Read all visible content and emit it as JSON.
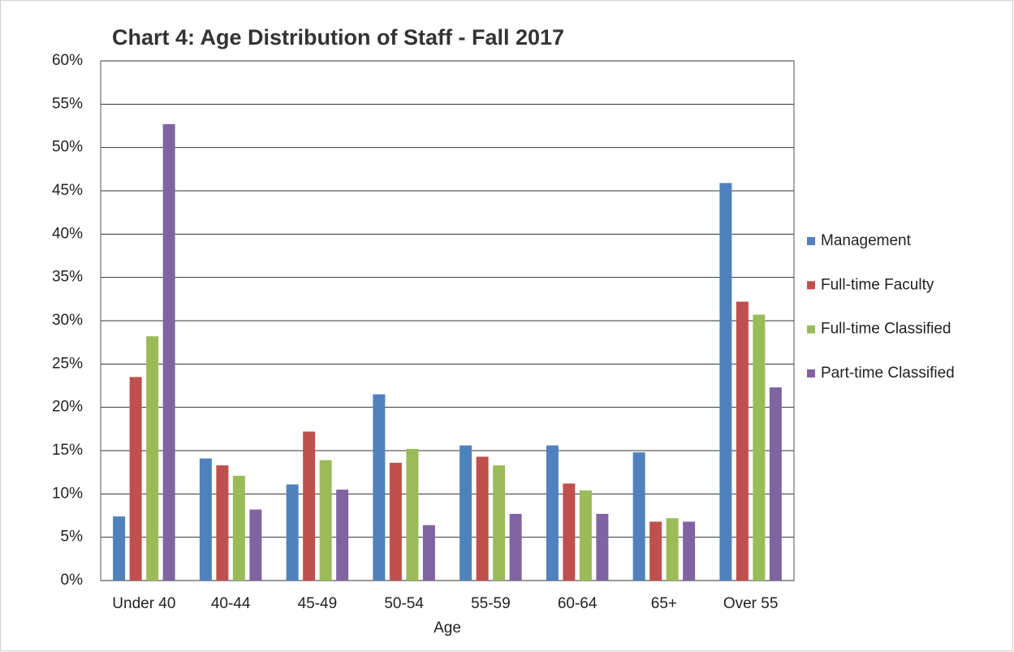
{
  "chart_data": {
    "type": "bar",
    "title": "Chart 4: Age Distribution of Staff - Fall 2017",
    "x_label": "Age",
    "categories": [
      "Under 40",
      "40-44",
      "45-49",
      "50-54",
      "55-59",
      "60-64",
      "65+",
      "Over 55"
    ],
    "series": [
      {
        "name": "Management",
        "color": "#4f81bd",
        "values": [
          7.4,
          14.1,
          11.1,
          21.5,
          15.6,
          15.6,
          14.8,
          45.9
        ]
      },
      {
        "name": "Full-time Faculty",
        "color": "#c0504d",
        "values": [
          23.5,
          13.3,
          17.2,
          13.6,
          14.3,
          11.2,
          6.8,
          32.2
        ]
      },
      {
        "name": "Full-time Classified",
        "color": "#9bbb59",
        "values": [
          28.2,
          12.1,
          13.9,
          15.2,
          13.3,
          10.4,
          7.2,
          30.7
        ]
      },
      {
        "name": "Part-time Classified",
        "color": "#8064a2",
        "values": [
          52.7,
          8.2,
          10.5,
          6.4,
          7.7,
          7.7,
          6.8,
          22.3
        ]
      }
    ],
    "ylim": [
      0,
      60
    ],
    "yticks": [
      {
        "value": 0,
        "label": "0%"
      },
      {
        "value": 5,
        "label": "5%"
      },
      {
        "value": 10,
        "label": "10%"
      },
      {
        "value": 15,
        "label": "15%"
      },
      {
        "value": 20,
        "label": "20%"
      },
      {
        "value": 25,
        "label": "25%"
      },
      {
        "value": 30,
        "label": "30%"
      },
      {
        "value": 35,
        "label": "35%"
      },
      {
        "value": 40,
        "label": "40%"
      },
      {
        "value": 45,
        "label": "45%"
      },
      {
        "value": 50,
        "label": "50%"
      },
      {
        "value": 55,
        "label": "55%"
      },
      {
        "value": 60,
        "label": "60%"
      }
    ],
    "grid": true,
    "legend": "right"
  }
}
